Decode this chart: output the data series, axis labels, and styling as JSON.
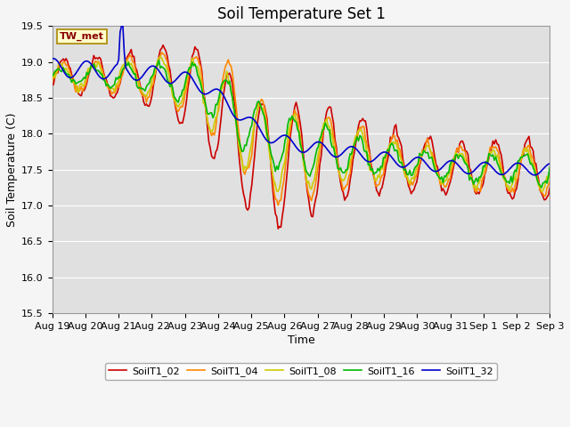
{
  "title": "Soil Temperature Set 1",
  "xlabel": "Time",
  "ylabel": "Soil Temperature (C)",
  "ylim": [
    15.5,
    19.5
  ],
  "plot_bg_color": "#e0e0e0",
  "fig_bg_color": "#f5f5f5",
  "annotation_text": "TW_met",
  "annotation_bg": "#ffffcc",
  "annotation_border": "#aa8800",
  "annotation_text_color": "#880000",
  "legend_entries": [
    "SoilT1_02",
    "SoilT1_04",
    "SoilT1_08",
    "SoilT1_16",
    "SoilT1_32"
  ],
  "line_colors": [
    "#cc0000",
    "#ff8800",
    "#cccc00",
    "#00bb00",
    "#0000cc"
  ],
  "xtick_labels": [
    "Aug 19",
    "Aug 20",
    "Aug 21",
    "Aug 22",
    "Aug 23",
    "Aug 24",
    "Aug 25",
    "Aug 26",
    "Aug 27",
    "Aug 28",
    "Aug 29",
    "Aug 30",
    "Aug 31",
    "Sep 1",
    "Sep 2",
    "Sep 3"
  ],
  "ytick_labels": [
    "15.5",
    "16.0",
    "16.5",
    "17.0",
    "17.5",
    "18.0",
    "18.5",
    "19.0",
    "19.5"
  ],
  "ytick_vals": [
    15.5,
    16.0,
    16.5,
    17.0,
    17.5,
    18.0,
    18.5,
    19.0,
    19.5
  ],
  "title_fontsize": 12,
  "axis_label_fontsize": 9,
  "tick_fontsize": 8,
  "grid_color": "#ffffff",
  "line_width": 1.2
}
